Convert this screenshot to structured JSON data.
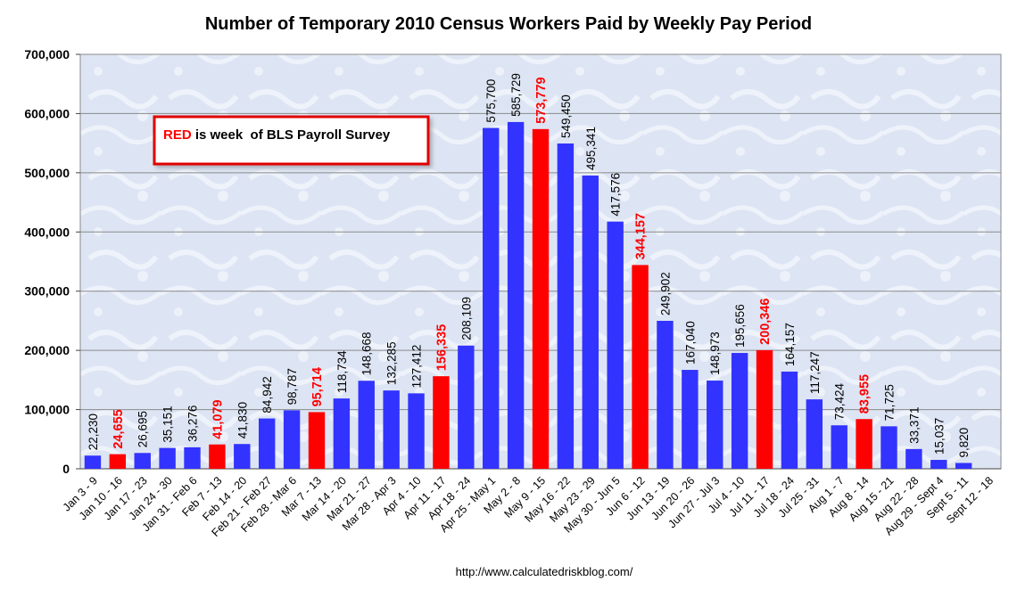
{
  "chart_data": {
    "type": "bar",
    "title": "Number of Temporary 2010 Census Workers Paid by Weekly Pay Period",
    "xlabel": "",
    "ylabel": "",
    "ylim": [
      0,
      700000
    ],
    "yticks": [
      "0",
      "100,000",
      "200,000",
      "300,000",
      "400,000",
      "500,000",
      "600,000",
      "700,000"
    ],
    "grid": true,
    "colors": {
      "normal": "#3333ff",
      "highlight": "#ff0000"
    },
    "categories": [
      "Jan 3 - 9",
      "Jan 10 - 16",
      "Jan 17 - 23",
      "Jan 24 - 30",
      "Jan 31 - Feb 6",
      "Feb 7 - 13",
      "Feb 14 - 20",
      "Feb 21 - Feb 27",
      "Feb 28 - Mar 6",
      "Mar 7 - 13",
      "Mar 14 - 20",
      "Mar 21 - 27",
      "Mar 28 - Apr 3",
      "Apr 4 - 10",
      "Apr 11 - 17",
      "Apr 18 - 24",
      "Apr 25 - May 1",
      "May 2 - 8",
      "May 9 - 15",
      "May 16 - 22",
      "May 23 - 29",
      "May 30 - Jun 5",
      "Jun 6 - 12",
      "Jun 13 - 19",
      "Jun 20 - 26",
      "Jun 27 - Jul 3",
      "Jul 4 - 10",
      "Jul 11 - 17",
      "Jul 18 - 24",
      "Jul 25 - 31",
      "Aug 1 - 7",
      "Aug 8 - 14",
      "Aug 15 - 21",
      "Aug 22 - 28",
      "Aug 29 - Sept 4",
      "Sept 5 - 11",
      "Sept 12 - 18"
    ],
    "values": [
      22230,
      24655,
      26695,
      35151,
      36276,
      41079,
      41830,
      84942,
      98787,
      95714,
      118734,
      148668,
      132285,
      127412,
      156335,
      208109,
      575700,
      585729,
      573779,
      549450,
      495341,
      417576,
      344157,
      249902,
      167040,
      148973,
      195656,
      200346,
      164157,
      117247,
      73424,
      83955,
      71725,
      33371,
      15037,
      9820,
      null
    ],
    "value_labels": [
      "22,230",
      "24,655",
      "26,695",
      "35,151",
      "36,276",
      "41,079",
      "41,830",
      "84,942",
      "98,787",
      "95,714",
      "118,734",
      "148,668",
      "132,285",
      "127,412",
      "156,335",
      "208,109",
      "575,700",
      "585,729",
      "573,779",
      "549,450",
      "495,341",
      "417,576",
      "344,157",
      "249,902",
      "167,040",
      "148,973",
      "195,656",
      "200,346",
      "164,157",
      "117,247",
      "73,424",
      "83,955",
      "71,725",
      "33,371",
      "15,037",
      "9,820",
      ""
    ],
    "highlighted": [
      false,
      true,
      false,
      false,
      false,
      true,
      false,
      false,
      false,
      true,
      false,
      false,
      false,
      false,
      true,
      false,
      false,
      false,
      true,
      false,
      false,
      false,
      true,
      false,
      false,
      false,
      false,
      true,
      false,
      false,
      false,
      true,
      false,
      false,
      false,
      false,
      false
    ],
    "legend": {
      "red_word": "RED",
      "rest": " is week  of BLS Payroll Survey",
      "border_color": "#e00000"
    },
    "source": "http://www.calculatedriskblog.com/"
  }
}
